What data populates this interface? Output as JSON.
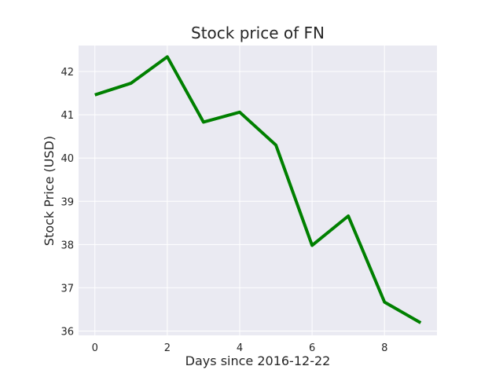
{
  "chart_data": {
    "type": "line",
    "title": "Stock price of FN",
    "xlabel": "Days since 2016-12-22",
    "ylabel": "Stock Price (USD)",
    "x": [
      0,
      1,
      2,
      3,
      4,
      5,
      6,
      7,
      8,
      9
    ],
    "series": [
      {
        "values": [
          41.46,
          41.73,
          42.34,
          40.83,
          41.06,
          40.3,
          37.98,
          38.66,
          36.67,
          36.19
        ],
        "color": "#008000"
      }
    ],
    "xlim": [
      -0.45,
      9.45
    ],
    "ylim": [
      35.9,
      42.6
    ],
    "xticks": [
      0,
      2,
      4,
      6,
      8
    ],
    "yticks": [
      36,
      37,
      38,
      39,
      40,
      41,
      42
    ],
    "grid": true,
    "legend": "none",
    "style": "seaborn-darkgrid",
    "colors": {
      "plot_background": "#eaeaf2",
      "grid": "#ffffff"
    }
  }
}
